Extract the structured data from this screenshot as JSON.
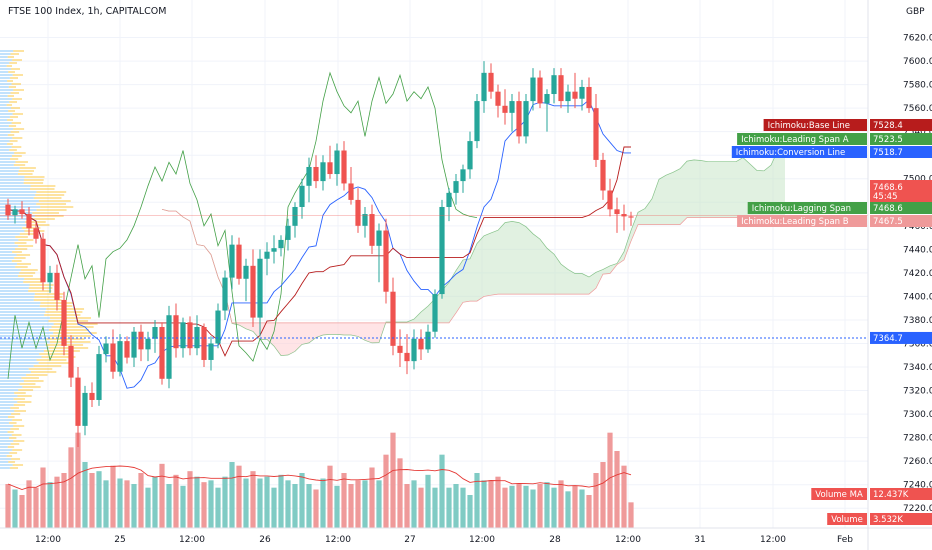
{
  "header": {
    "title": "FTSE 100 Index, 1h, CAPITALCOM",
    "currency": "GBP"
  },
  "colors": {
    "up": "#26a69a",
    "down": "#ef5350",
    "base_line": "#b71c1c",
    "span_a": "#43a047",
    "span_b": "#ef9a9a",
    "conversion": "#2962ff",
    "lagging": "#43a047",
    "cloud_green": "#c8e6c9",
    "cloud_red": "#ffcdd2",
    "volume_up": "#80cbc4",
    "volume_down": "#ef9a9a",
    "volume_ma": "#e53935",
    "profile_blue": "#90caf9",
    "profile_yellow": "#fbc02d"
  },
  "chart_data": {
    "type": "candlestick",
    "ylim": [
      7210,
      7640
    ],
    "y_ticks": [
      "7620.0",
      "7600.0",
      "7580.0",
      "7560.0",
      "7540.0",
      "7520.0",
      "7500.0",
      "7480.0",
      "7460.0",
      "7440.0",
      "7420.0",
      "7400.0",
      "7380.0",
      "7360.0",
      "7340.0",
      "7320.0",
      "7300.0",
      "7280.0",
      "7260.0",
      "7240.0",
      "7220.0"
    ],
    "x_ticks": [
      "12:00",
      "25",
      "12:00",
      "26",
      "12:00",
      "27",
      "12:00",
      "28",
      "12:00",
      "31",
      "12:00",
      "Feb"
    ],
    "ohlc": [
      [
        7478,
        7483,
        7465,
        7469
      ],
      [
        7469,
        7477,
        7462,
        7474
      ],
      [
        7474,
        7481,
        7466,
        7470
      ],
      [
        7470,
        7476,
        7452,
        7458
      ],
      [
        7458,
        7463,
        7445,
        7449
      ],
      [
        7449,
        7454,
        7405,
        7412
      ],
      [
        7412,
        7426,
        7403,
        7420
      ],
      [
        7420,
        7427,
        7388,
        7397
      ],
      [
        7397,
        7404,
        7350,
        7358
      ],
      [
        7358,
        7367,
        7323,
        7331
      ],
      [
        7331,
        7340,
        7272,
        7290
      ],
      [
        7290,
        7324,
        7282,
        7318
      ],
      [
        7318,
        7327,
        7306,
        7312
      ],
      [
        7312,
        7358,
        7307,
        7351
      ],
      [
        7351,
        7366,
        7344,
        7360
      ],
      [
        7360,
        7372,
        7330,
        7336
      ],
      [
        7336,
        7368,
        7332,
        7362
      ],
      [
        7362,
        7366,
        7343,
        7348
      ],
      [
        7348,
        7374,
        7340,
        7370
      ],
      [
        7370,
        7376,
        7345,
        7355
      ],
      [
        7355,
        7370,
        7345,
        7364
      ],
      [
        7364,
        7380,
        7352,
        7374
      ],
      [
        7374,
        7378,
        7325,
        7330
      ],
      [
        7330,
        7392,
        7322,
        7384
      ],
      [
        7384,
        7394,
        7348,
        7356
      ],
      [
        7356,
        7382,
        7348,
        7378
      ],
      [
        7378,
        7383,
        7350,
        7356
      ],
      [
        7356,
        7384,
        7350,
        7374
      ],
      [
        7374,
        7377,
        7340,
        7346
      ],
      [
        7346,
        7366,
        7337,
        7360
      ],
      [
        7360,
        7394,
        7356,
        7388
      ],
      [
        7388,
        7422,
        7380,
        7416
      ],
      [
        7416,
        7452,
        7406,
        7444
      ],
      [
        7444,
        7450,
        7410,
        7415
      ],
      [
        7415,
        7432,
        7396,
        7426
      ],
      [
        7426,
        7440,
        7374,
        7382
      ],
      [
        7382,
        7440,
        7366,
        7432
      ],
      [
        7432,
        7446,
        7418,
        7438
      ],
      [
        7438,
        7452,
        7428,
        7441
      ],
      [
        7441,
        7452,
        7434,
        7448
      ],
      [
        7448,
        7466,
        7439,
        7460
      ],
      [
        7460,
        7480,
        7450,
        7476
      ],
      [
        7476,
        7500,
        7466,
        7494
      ],
      [
        7494,
        7518,
        7480,
        7510
      ],
      [
        7510,
        7520,
        7492,
        7498
      ],
      [
        7498,
        7520,
        7490,
        7514
      ],
      [
        7514,
        7528,
        7500,
        7504
      ],
      [
        7504,
        7530,
        7494,
        7524
      ],
      [
        7524,
        7532,
        7490,
        7496
      ],
      [
        7496,
        7510,
        7478,
        7482
      ],
      [
        7482,
        7492,
        7454,
        7460
      ],
      [
        7460,
        7476,
        7450,
        7470
      ],
      [
        7470,
        7478,
        7436,
        7443
      ],
      [
        7443,
        7462,
        7412,
        7456
      ],
      [
        7456,
        7466,
        7394,
        7404
      ],
      [
        7404,
        7416,
        7350,
        7358
      ],
      [
        7358,
        7372,
        7340,
        7352
      ],
      [
        7352,
        7368,
        7334,
        7345
      ],
      [
        7345,
        7372,
        7338,
        7364
      ],
      [
        7364,
        7372,
        7346,
        7355
      ],
      [
        7355,
        7376,
        7352,
        7370
      ],
      [
        7370,
        7406,
        7365,
        7402
      ],
      [
        7402,
        7482,
        7398,
        7476
      ],
      [
        7476,
        7492,
        7464,
        7488
      ],
      [
        7488,
        7504,
        7478,
        7498
      ],
      [
        7498,
        7512,
        7488,
        7508
      ],
      [
        7508,
        7540,
        7500,
        7532
      ],
      [
        7532,
        7572,
        7526,
        7566
      ],
      [
        7566,
        7600,
        7556,
        7590
      ],
      [
        7590,
        7598,
        7568,
        7574
      ],
      [
        7574,
        7580,
        7552,
        7562
      ],
      [
        7562,
        7576,
        7546,
        7556
      ],
      [
        7556,
        7572,
        7540,
        7566
      ],
      [
        7566,
        7574,
        7530,
        7536
      ],
      [
        7536,
        7572,
        7530,
        7566
      ],
      [
        7566,
        7594,
        7558,
        7586
      ],
      [
        7586,
        7592,
        7560,
        7564
      ],
      [
        7564,
        7576,
        7540,
        7572
      ],
      [
        7572,
        7594,
        7564,
        7588
      ],
      [
        7588,
        7594,
        7560,
        7566
      ],
      [
        7566,
        7580,
        7556,
        7574
      ],
      [
        7574,
        7590,
        7560,
        7568
      ],
      [
        7568,
        7584,
        7558,
        7578
      ],
      [
        7578,
        7586,
        7556,
        7560
      ],
      [
        7560,
        7572,
        7510,
        7516
      ],
      [
        7516,
        7522,
        7482,
        7490
      ],
      [
        7490,
        7500,
        7468,
        7474
      ],
      [
        7474,
        7484,
        7454,
        7470
      ],
      [
        7470,
        7478,
        7456,
        7468
      ],
      [
        7468,
        7472,
        7460,
        7467
      ]
    ],
    "volume": [
      24,
      21,
      18,
      26,
      22,
      33,
      25,
      28,
      30,
      44,
      52,
      36,
      30,
      31,
      26,
      34,
      27,
      26,
      24,
      30,
      22,
      28,
      35,
      24,
      29,
      23,
      31,
      28,
      25,
      26,
      22,
      28,
      36,
      34,
      27,
      31,
      27,
      28,
      22,
      29,
      26,
      24,
      30,
      24,
      21,
      27,
      34,
      23,
      30,
      24,
      26,
      26,
      33,
      26,
      40,
      52,
      38,
      24,
      26,
      22,
      29,
      22,
      40,
      22,
      24,
      22,
      18,
      30,
      26,
      26,
      28,
      22,
      23,
      24,
      23,
      21,
      24,
      25,
      22,
      26,
      20,
      23,
      21,
      18,
      30,
      36,
      52,
      42,
      34,
      14
    ],
    "volume_ma_label": "Volume MA",
    "volume_ma_value": "12.437K",
    "volume_label": "Volume",
    "volume_value": "3.532K",
    "price_line": 7364.7,
    "current": {
      "price": "7468.6",
      "countdown": "45:45"
    },
    "legend_tags": [
      {
        "label": "Ichimoku:Base Line",
        "value": "7528.4",
        "price": 7528.4,
        "color": "#b71c1c"
      },
      {
        "label": "Ichimoku:Leading Span A",
        "value": "7523.5",
        "price": 7523.5,
        "color": "#43a047"
      },
      {
        "label": "Ichimoku:Conversion Line",
        "value": "7518.7",
        "price": 7518.7,
        "color": "#2962ff"
      },
      {
        "label": "Ichimoku:Lagging Span",
        "value": "7468.6",
        "price": 7468.6,
        "color": "#43a047"
      },
      {
        "label": "Ichimoku:Leading Span B",
        "value": "7467.5",
        "price": 7467.5,
        "color": "#ef9a9a"
      }
    ],
    "price_tag": "7364.7"
  }
}
